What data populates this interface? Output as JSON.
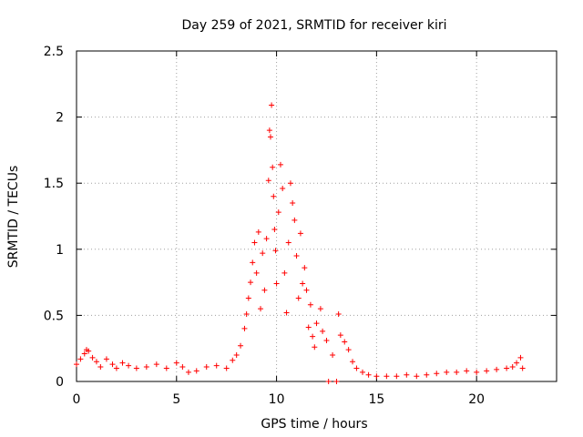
{
  "chart_data": {
    "type": "scatter",
    "title": "Day 259 of 2021, SRMTID for receiver kiri",
    "xlabel": "GPS time / hours",
    "ylabel": "SRMTID / TECUs",
    "xlim": [
      0,
      24
    ],
    "ylim": [
      0,
      2.5
    ],
    "x_ticks": [
      0,
      5,
      10,
      15,
      20
    ],
    "x_tick_labels": [
      "0",
      "5",
      "10",
      "15",
      "20"
    ],
    "y_ticks": [
      0,
      0.5,
      1,
      1.5,
      2,
      2.5
    ],
    "y_tick_labels": [
      "0",
      "0.5",
      "1",
      "1.5",
      "2",
      "2.5"
    ],
    "grid": true,
    "marker": "+",
    "color": "#ff0000",
    "series": [
      {
        "name": "SRMTID",
        "points": [
          [
            0.0,
            0.13
          ],
          [
            0.2,
            0.17
          ],
          [
            0.4,
            0.21
          ],
          [
            0.5,
            0.24
          ],
          [
            0.6,
            0.23
          ],
          [
            0.8,
            0.18
          ],
          [
            1.0,
            0.15
          ],
          [
            1.2,
            0.11
          ],
          [
            1.5,
            0.17
          ],
          [
            1.8,
            0.13
          ],
          [
            2.0,
            0.1
          ],
          [
            2.3,
            0.14
          ],
          [
            2.6,
            0.12
          ],
          [
            3.0,
            0.1
          ],
          [
            3.5,
            0.11
          ],
          [
            4.0,
            0.13
          ],
          [
            4.5,
            0.1
          ],
          [
            5.0,
            0.14
          ],
          [
            5.3,
            0.11
          ],
          [
            5.6,
            0.07
          ],
          [
            6.0,
            0.08
          ],
          [
            6.5,
            0.11
          ],
          [
            7.0,
            0.12
          ],
          [
            7.5,
            0.1
          ],
          [
            7.8,
            0.16
          ],
          [
            8.0,
            0.2
          ],
          [
            8.2,
            0.27
          ],
          [
            8.4,
            0.4
          ],
          [
            8.5,
            0.51
          ],
          [
            8.6,
            0.63
          ],
          [
            8.7,
            0.75
          ],
          [
            8.8,
            0.9
          ],
          [
            8.9,
            1.05
          ],
          [
            9.0,
            0.82
          ],
          [
            9.1,
            1.13
          ],
          [
            9.2,
            0.55
          ],
          [
            9.3,
            0.97
          ],
          [
            9.4,
            0.69
          ],
          [
            9.5,
            1.08
          ],
          [
            9.6,
            1.52
          ],
          [
            9.65,
            1.9
          ],
          [
            9.7,
            1.85
          ],
          [
            9.75,
            2.09
          ],
          [
            9.8,
            1.62
          ],
          [
            9.85,
            1.4
          ],
          [
            9.9,
            1.15
          ],
          [
            9.95,
            0.99
          ],
          [
            10.0,
            0.74
          ],
          [
            10.1,
            1.28
          ],
          [
            10.2,
            1.64
          ],
          [
            10.3,
            1.46
          ],
          [
            10.4,
            0.82
          ],
          [
            10.5,
            0.52
          ],
          [
            10.6,
            1.05
          ],
          [
            10.7,
            1.5
          ],
          [
            10.8,
            1.35
          ],
          [
            10.9,
            1.22
          ],
          [
            11.0,
            0.95
          ],
          [
            11.1,
            0.63
          ],
          [
            11.2,
            1.12
          ],
          [
            11.3,
            0.74
          ],
          [
            11.4,
            0.86
          ],
          [
            11.5,
            0.69
          ],
          [
            11.6,
            0.41
          ],
          [
            11.7,
            0.58
          ],
          [
            11.8,
            0.34
          ],
          [
            11.9,
            0.26
          ],
          [
            12.0,
            0.44
          ],
          [
            12.2,
            0.55
          ],
          [
            12.3,
            0.38
          ],
          [
            12.5,
            0.31
          ],
          [
            12.6,
            0.0
          ],
          [
            12.8,
            0.2
          ],
          [
            13.0,
            0.0
          ],
          [
            13.1,
            0.51
          ],
          [
            13.2,
            0.35
          ],
          [
            13.4,
            0.3
          ],
          [
            13.6,
            0.24
          ],
          [
            13.8,
            0.15
          ],
          [
            14.0,
            0.1
          ],
          [
            14.3,
            0.07
          ],
          [
            14.6,
            0.05
          ],
          [
            15.0,
            0.04
          ],
          [
            15.5,
            0.04
          ],
          [
            16.0,
            0.04
          ],
          [
            16.5,
            0.05
          ],
          [
            17.0,
            0.04
          ],
          [
            17.5,
            0.05
          ],
          [
            18.0,
            0.06
          ],
          [
            18.5,
            0.07
          ],
          [
            19.0,
            0.07
          ],
          [
            19.5,
            0.08
          ],
          [
            20.0,
            0.07
          ],
          [
            20.5,
            0.08
          ],
          [
            21.0,
            0.09
          ],
          [
            21.5,
            0.1
          ],
          [
            21.8,
            0.11
          ],
          [
            22.0,
            0.14
          ],
          [
            22.2,
            0.18
          ],
          [
            22.3,
            0.1
          ]
        ]
      }
    ]
  }
}
